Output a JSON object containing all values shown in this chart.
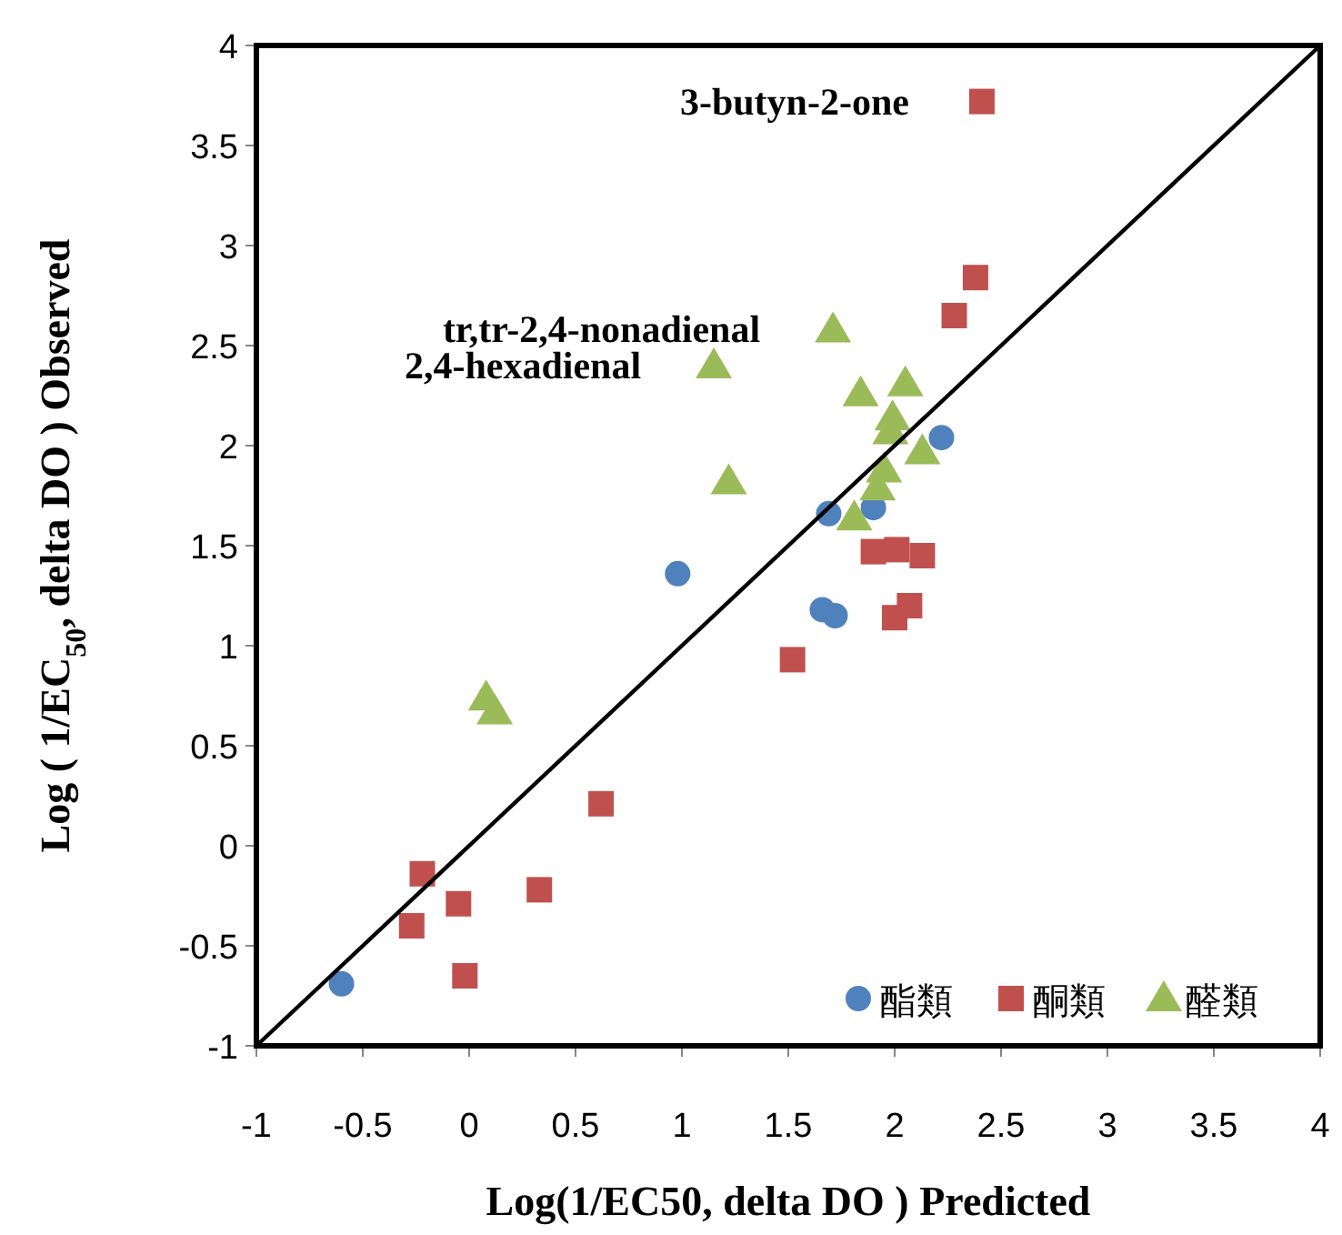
{
  "chart_data": {
    "type": "scatter",
    "xlabel": "Log(1/EC50, delta DO ) Predicted",
    "ylabel": "Log ( 1/EC$_{50}$, delta DO ) Observed",
    "xlim": [
      -1,
      4
    ],
    "xticks": [
      -1,
      -0.5,
      0,
      0.5,
      1,
      1.5,
      2,
      2.5,
      3,
      3.5,
      4
    ],
    "ylim": [
      -1,
      4
    ],
    "yticks": [
      -1,
      -0.5,
      0,
      0.5,
      1,
      1.5,
      2,
      2.5,
      3,
      3.5,
      4
    ],
    "grid": false,
    "legend": "bottom right",
    "series": [
      {
        "name": "酯類",
        "marker": "circle",
        "color": "#4f81bd",
        "x": [
          -0.6,
          0.98,
          1.66,
          1.72,
          1.69,
          1.9,
          2.22
        ],
        "values": [
          -0.69,
          1.36,
          1.18,
          1.15,
          1.66,
          1.69,
          2.04
        ]
      },
      {
        "name": "酮類",
        "marker": "square",
        "color": "#c0504d",
        "x": [
          2.41,
          2.38,
          2.28,
          1.9,
          2.01,
          2.13,
          2.07,
          2.0,
          1.52,
          0.62,
          -0.22,
          -0.05,
          -0.27,
          0.33,
          -0.02
        ],
        "values": [
          3.72,
          2.84,
          2.65,
          1.47,
          1.48,
          1.45,
          1.2,
          1.14,
          0.93,
          0.21,
          -0.14,
          -0.29,
          -0.4,
          -0.22,
          -0.65
        ]
      },
      {
        "name": "醛類",
        "marker": "triangle",
        "color": "#9bbb59",
        "x": [
          1.71,
          1.15,
          1.84,
          2.05,
          1.99,
          1.98,
          2.13,
          1.22,
          1.95,
          1.92,
          1.81,
          0.08,
          0.12
        ],
        "values": [
          2.58,
          2.4,
          2.26,
          2.31,
          2.14,
          2.07,
          1.97,
          1.82,
          1.88,
          1.79,
          1.64,
          0.74,
          0.67
        ]
      },
      {
        "type": "line",
        "marker": "none",
        "line_style": "solid",
        "color": "#000000",
        "x": [
          -1,
          4
        ],
        "values": [
          -1,
          4
        ]
      }
    ],
    "annotations": [
      {
        "text": "3-butyn-2-one",
        "x": 2.41,
        "y": 3.72
      },
      {
        "text": "tr,tr-2,4-nonadienal",
        "x": 1.71,
        "y": 2.58
      },
      {
        "text": "2,4-hexadienal",
        "x": 1.15,
        "y": 2.4
      }
    ]
  }
}
